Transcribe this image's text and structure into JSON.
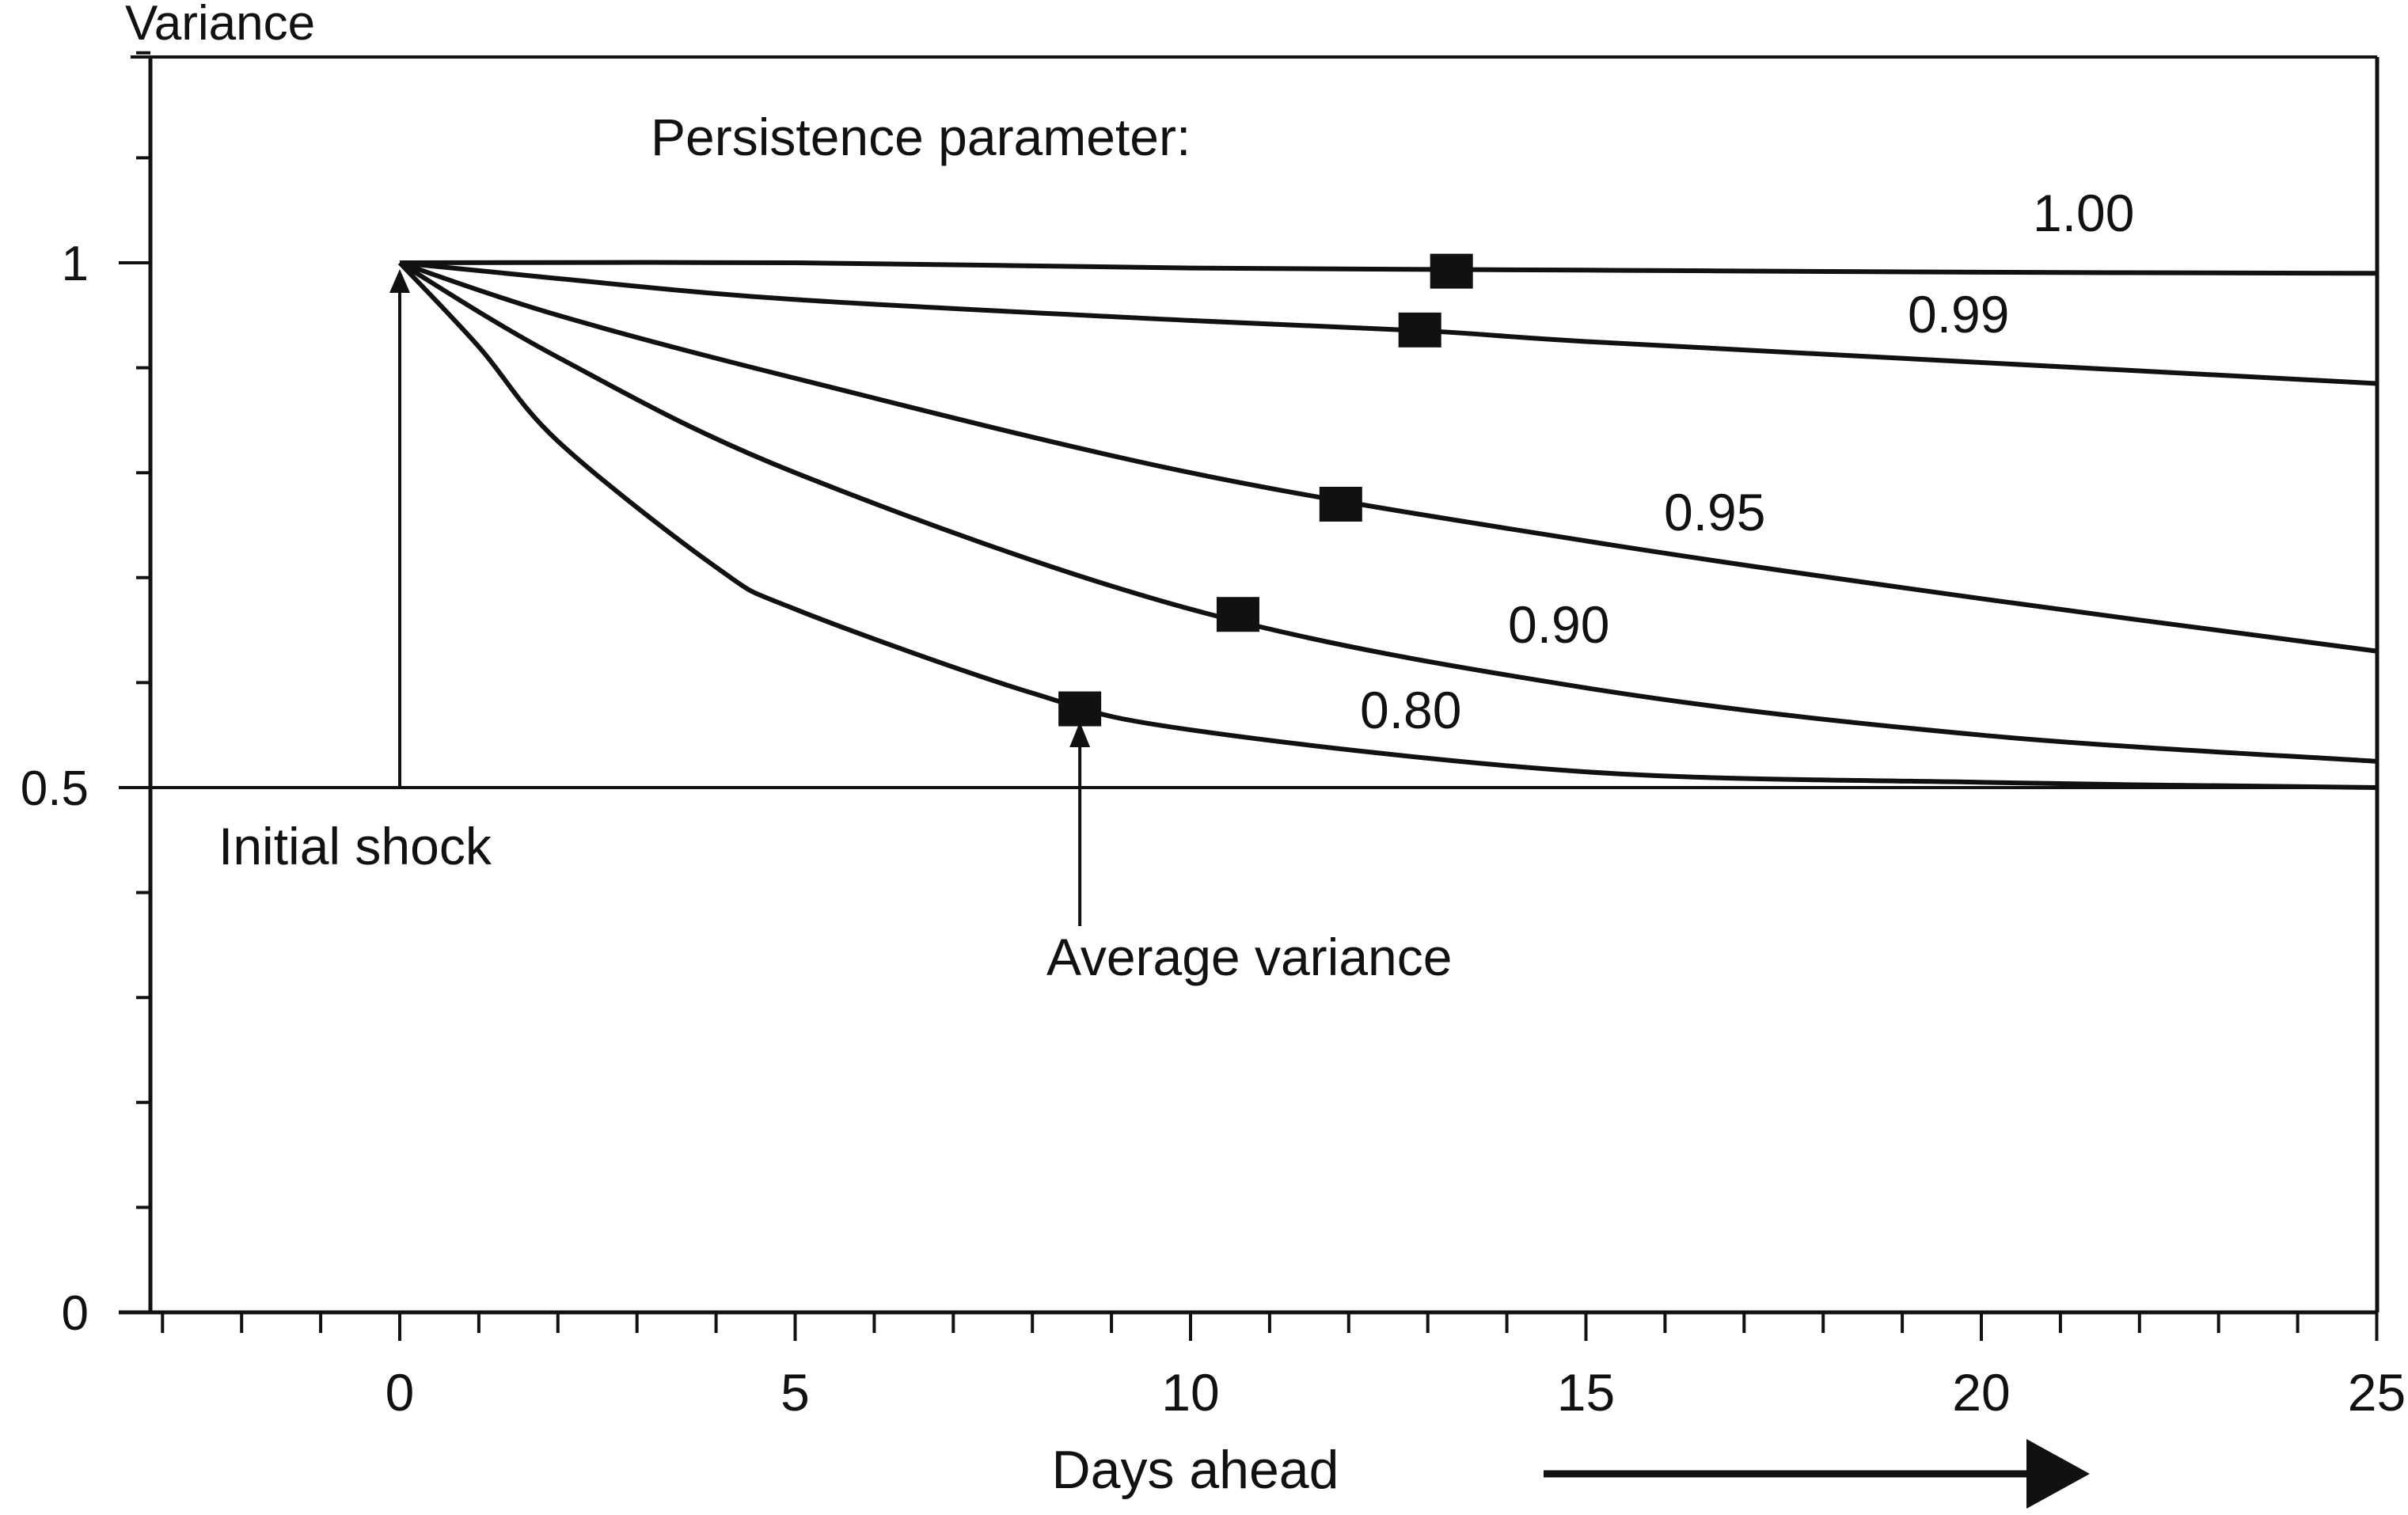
{
  "chart_data": {
    "type": "line",
    "ylabel": "Variance",
    "xlabel": "Days ahead",
    "xlim": [
      -3.2,
      25
    ],
    "ylim": [
      0,
      1.2
    ],
    "x_ticks": [
      0,
      5,
      10,
      15,
      20,
      25
    ],
    "x_tick_labels": [
      "0",
      "5",
      "10",
      "15",
      "20",
      "25"
    ],
    "y_tick_labels": [
      {
        "value": 0,
        "label": "0"
      },
      {
        "value": 0.5,
        "label": "0.5"
      },
      {
        "value": 1,
        "label": "1"
      }
    ],
    "legend_title": "Persistence parameter:",
    "reference_line": {
      "y": 0.5
    },
    "series": [
      {
        "name": "1.00",
        "points": [
          [
            0,
            1.0
          ],
          [
            5,
            1.0
          ],
          [
            10,
            0.995
          ],
          [
            15,
            0.993
          ],
          [
            20,
            0.991
          ],
          [
            25,
            0.99
          ]
        ],
        "marker": [
          13.3,
          0.992
        ],
        "label_at": [
          12.5,
          1.02
        ]
      },
      {
        "name": "0.99",
        "points": [
          [
            0,
            1.0
          ],
          [
            2,
            0.985
          ],
          [
            5,
            0.965
          ],
          [
            10,
            0.945
          ],
          [
            13,
            0.935
          ],
          [
            15,
            0.925
          ],
          [
            20,
            0.905
          ],
          [
            25,
            0.885
          ]
        ],
        "marker": [
          12.9,
          0.936
        ],
        "label_at": [
          12.5,
          0.925
        ]
      },
      {
        "name": "0.95",
        "points": [
          [
            0,
            1.0
          ],
          [
            2,
            0.95
          ],
          [
            5,
            0.89
          ],
          [
            10,
            0.8
          ],
          [
            15,
            0.735
          ],
          [
            20,
            0.68
          ],
          [
            25,
            0.63
          ]
        ],
        "marker": [
          11.9,
          0.77
        ],
        "label_at": [
          12.5,
          0.735
        ]
      },
      {
        "name": "0.90",
        "points": [
          [
            0,
            1.0
          ],
          [
            2,
            0.91
          ],
          [
            5,
            0.8
          ],
          [
            10,
            0.67
          ],
          [
            15,
            0.595
          ],
          [
            20,
            0.55
          ],
          [
            25,
            0.525
          ]
        ],
        "marker": [
          10.6,
          0.665
        ],
        "label_at": [
          12.5,
          0.63
        ]
      },
      {
        "name": "0.80",
        "points": [
          [
            0,
            1.0
          ],
          [
            1,
            0.92
          ],
          [
            2,
            0.83
          ],
          [
            4,
            0.71
          ],
          [
            5,
            0.67
          ],
          [
            8,
            0.59
          ],
          [
            10,
            0.555
          ],
          [
            15,
            0.515
          ],
          [
            20,
            0.505
          ],
          [
            25,
            0.5
          ]
        ],
        "marker": [
          8.6,
          0.575
        ],
        "label_at": [
          12.5,
          0.545
        ]
      }
    ],
    "annotations": [
      {
        "text": "Initial shock",
        "arrow_to": [
          0,
          1.0
        ],
        "arrow_from": [
          0,
          0.5
        ]
      },
      {
        "text": "Average variance",
        "arrow_to": [
          8.6,
          0.56
        ],
        "arrow_from": [
          8.6,
          0.41
        ]
      }
    ]
  }
}
